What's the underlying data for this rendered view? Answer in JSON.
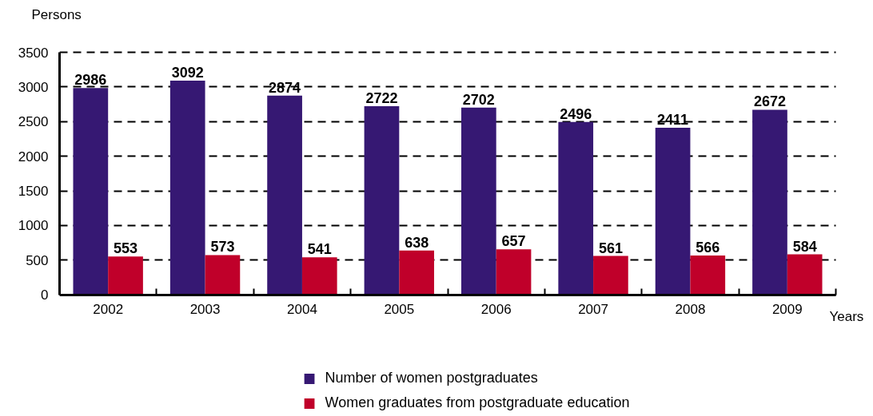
{
  "chart_data": {
    "type": "bar",
    "ylabel": "Persons",
    "xlabel": "Years",
    "categories": [
      "2002",
      "2003",
      "2004",
      "2005",
      "2006",
      "2007",
      "2008",
      "2009"
    ],
    "series": [
      {
        "name": "Number of women postgraduates",
        "color": "#361873",
        "values": [
          2986,
          3092,
          2874,
          2722,
          2702,
          2496,
          2411,
          2672
        ]
      },
      {
        "name": "Women graduates from postgraduate education",
        "color": "#c0002a",
        "values": [
          553,
          573,
          541,
          638,
          657,
          561,
          566,
          584
        ]
      }
    ],
    "ylim": [
      0,
      3500
    ],
    "yticks": [
      0,
      500,
      1000,
      1500,
      2000,
      2500,
      3000,
      3500
    ],
    "grid": "y",
    "legend": "bottom",
    "data_labels": true
  }
}
